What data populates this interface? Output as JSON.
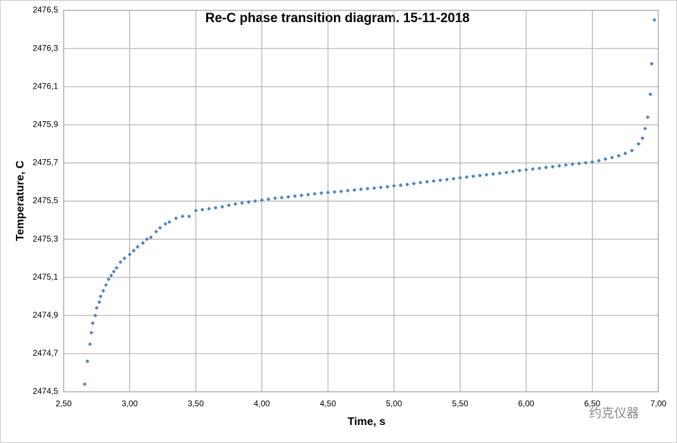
{
  "chart_data": {
    "type": "scatter",
    "title": "Re-C phase transition diagram. 15-11-2018",
    "x_label": "Time, s",
    "y_label": "Temperature, C",
    "watermark": "约克仪器",
    "color": "#4f81bd",
    "grid": true,
    "xlim": [
      2.5,
      7.0
    ],
    "ylim": [
      2474.5,
      2476.5
    ],
    "xticks": [
      {
        "value": 2.5,
        "label": "2,50"
      },
      {
        "value": 3.0,
        "label": "3,00"
      },
      {
        "value": 3.5,
        "label": "3,50"
      },
      {
        "value": 4.0,
        "label": "4,00"
      },
      {
        "value": 4.5,
        "label": "4,50"
      },
      {
        "value": 5.0,
        "label": "5,00"
      },
      {
        "value": 5.5,
        "label": "5,50"
      },
      {
        "value": 6.0,
        "label": "6,00"
      },
      {
        "value": 6.5,
        "label": "6,50"
      },
      {
        "value": 7.0,
        "label": "7,00"
      }
    ],
    "yticks": [
      {
        "value": 2474.5,
        "label": "2474,5"
      },
      {
        "value": 2474.7,
        "label": "2474,7"
      },
      {
        "value": 2474.9,
        "label": "2474,9"
      },
      {
        "value": 2475.1,
        "label": "2475,1"
      },
      {
        "value": 2475.3,
        "label": "2475,3"
      },
      {
        "value": 2475.5,
        "label": "2475,5"
      },
      {
        "value": 2475.7,
        "label": "2475,7"
      },
      {
        "value": 2475.9,
        "label": "2475,9"
      },
      {
        "value": 2476.1,
        "label": "2476,1"
      },
      {
        "value": 2476.3,
        "label": "2476,3"
      },
      {
        "value": 2476.5,
        "label": "2476,5"
      }
    ],
    "x": [
      2.66,
      2.68,
      2.7,
      2.71,
      2.72,
      2.74,
      2.75,
      2.77,
      2.78,
      2.8,
      2.82,
      2.84,
      2.86,
      2.88,
      2.9,
      2.93,
      2.96,
      3.0,
      3.03,
      3.06,
      3.1,
      3.13,
      3.16,
      3.2,
      3.23,
      3.27,
      3.3,
      3.35,
      3.4,
      3.45,
      3.5,
      3.55,
      3.6,
      3.65,
      3.7,
      3.75,
      3.8,
      3.85,
      3.9,
      3.95,
      4.0,
      4.05,
      4.1,
      4.15,
      4.2,
      4.25,
      4.3,
      4.35,
      4.4,
      4.45,
      4.5,
      4.55,
      4.6,
      4.65,
      4.7,
      4.75,
      4.8,
      4.85,
      4.9,
      4.95,
      5.0,
      5.05,
      5.1,
      5.15,
      5.2,
      5.25,
      5.3,
      5.35,
      5.4,
      5.45,
      5.5,
      5.55,
      5.6,
      5.65,
      5.7,
      5.75,
      5.8,
      5.85,
      5.9,
      5.95,
      6.0,
      6.05,
      6.1,
      6.15,
      6.2,
      6.25,
      6.3,
      6.35,
      6.4,
      6.45,
      6.5,
      6.55,
      6.6,
      6.65,
      6.7,
      6.75,
      6.8,
      6.85,
      6.88,
      6.9,
      6.92,
      6.94,
      6.95,
      6.97
    ],
    "values": [
      2474.54,
      2474.66,
      2474.75,
      2474.81,
      2474.86,
      2474.9,
      2474.94,
      2474.97,
      2475.0,
      2475.03,
      2475.06,
      2475.09,
      2475.11,
      2475.13,
      2475.15,
      2475.18,
      2475.2,
      2475.22,
      2475.24,
      2475.26,
      2475.28,
      2475.3,
      2475.31,
      2475.34,
      2475.36,
      2475.38,
      2475.39,
      2475.41,
      2475.42,
      2475.42,
      2475.45,
      2475.455,
      2475.46,
      2475.465,
      2475.47,
      2475.478,
      2475.485,
      2475.49,
      2475.495,
      2475.5,
      2475.505,
      2475.51,
      2475.515,
      2475.518,
      2475.522,
      2475.526,
      2475.53,
      2475.534,
      2475.538,
      2475.542,
      2475.545,
      2475.548,
      2475.551,
      2475.555,
      2475.558,
      2475.562,
      2475.565,
      2475.568,
      2475.572,
      2475.575,
      2475.58,
      2475.583,
      2475.587,
      2475.592,
      2475.597,
      2475.601,
      2475.605,
      2475.609,
      2475.613,
      2475.617,
      2475.622,
      2475.626,
      2475.63,
      2475.634,
      2475.638,
      2475.642,
      2475.646,
      2475.65,
      2475.655,
      2475.66,
      2475.664,
      2475.668,
      2475.672,
      2475.676,
      2475.68,
      2475.685,
      2475.689,
      2475.693,
      2475.697,
      2475.701,
      2475.705,
      2475.712,
      2475.72,
      2475.728,
      2475.738,
      2475.75,
      2475.765,
      2475.8,
      2475.83,
      2475.88,
      2475.94,
      2476.06,
      2476.22,
      2476.45
    ]
  }
}
